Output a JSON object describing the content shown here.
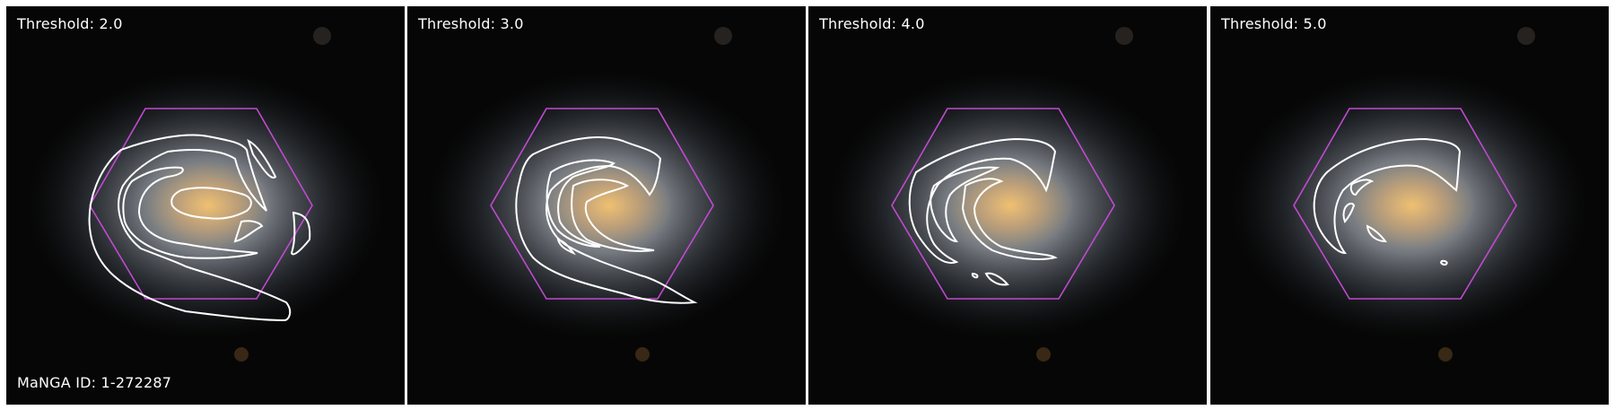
{
  "panels": [
    {
      "threshold_label": "Threshold: 2.0"
    },
    {
      "threshold_label": "Threshold: 3.0"
    },
    {
      "threshold_label": "Threshold: 4.0"
    },
    {
      "threshold_label": "Threshold: 5.0"
    }
  ],
  "manga_id_label": "MaNGA ID: 1-272287",
  "colors": {
    "hexagon": "#c04ad0",
    "contour": "#ffffff",
    "background": "#050505"
  }
}
